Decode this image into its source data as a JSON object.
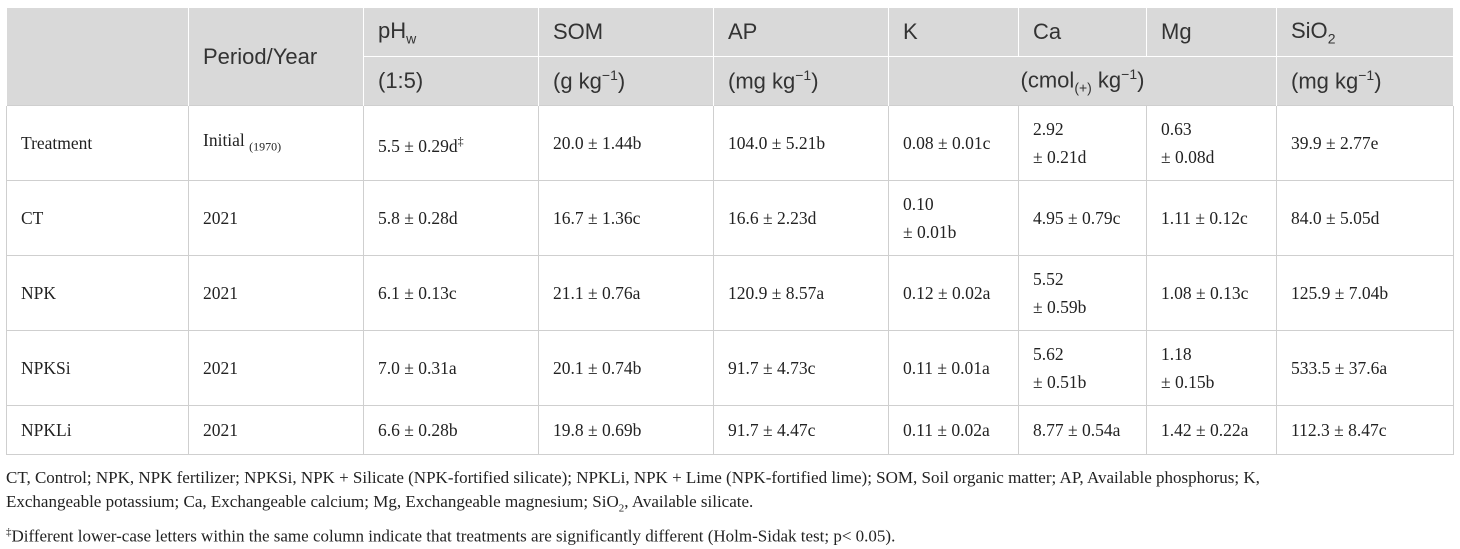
{
  "header": {
    "col0": "",
    "period_year": "Period/Year",
    "ph_base": "pH",
    "ph_sub": "w",
    "ph_unit": "(1:5)",
    "som": "SOM",
    "som_unit_base": "(g kg",
    "som_unit_sup": "−1",
    "som_unit_end": ")",
    "ap": "AP",
    "ap_unit_base": "(mg kg",
    "ap_unit_sup": "−1",
    "ap_unit_end": ")",
    "k": "K",
    "ca": "Ca",
    "mg": "Mg",
    "cations_unit_base": "(cmol",
    "cations_unit_sub": "(+)",
    "cations_unit_mid": " kg",
    "cations_unit_sup": "−1",
    "cations_unit_end": ")",
    "sio2_base": "SiO",
    "sio2_sub": "2",
    "sio2_unit_base": "(mg kg",
    "sio2_unit_sup": "−1",
    "sio2_unit_end": ")"
  },
  "rows": [
    {
      "treatment": "Treatment",
      "period": "Initial",
      "period_sub": "(1970)",
      "ph": "5.5 ± 0.29d",
      "ph_sup": "‡",
      "som": "20.0 ± 1.44b",
      "ap": "104.0 ± 5.21b",
      "k_line1": "0.08 ± 0.01c",
      "k_line2": "",
      "ca_line1": "2.92",
      "ca_line2": "± 0.21d",
      "mg_line1": "0.63",
      "mg_line2": "± 0.08d",
      "sio2": "39.9 ± 2.77e"
    },
    {
      "treatment": "CT",
      "period": "2021",
      "period_sub": "",
      "ph": "5.8 ± 0.28d",
      "ph_sup": "",
      "som": "16.7 ± 1.36c",
      "ap": "16.6 ± 2.23d",
      "k_line1": "0.10",
      "k_line2": "± 0.01b",
      "ca_line1": "4.95 ± 0.79c",
      "ca_line2": "",
      "mg_line1": "1.11 ± 0.12c",
      "mg_line2": "",
      "sio2": "84.0 ± 5.05d"
    },
    {
      "treatment": "NPK",
      "period": "2021",
      "period_sub": "",
      "ph": "6.1 ± 0.13c",
      "ph_sup": "",
      "som": "21.1 ± 0.76a",
      "ap": "120.9 ± 8.57a",
      "k_line1": "0.12 ± 0.02a",
      "k_line2": "",
      "ca_line1": "5.52",
      "ca_line2": "± 0.59b",
      "mg_line1": "1.08 ± 0.13c",
      "mg_line2": "",
      "sio2": "125.9 ± 7.04b"
    },
    {
      "treatment": "NPKSi",
      "period": "2021",
      "period_sub": "",
      "ph": "7.0 ± 0.31a",
      "ph_sup": "",
      "som": "20.1 ± 0.74b",
      "ap": "91.7 ± 4.73c",
      "k_line1": "0.11 ± 0.01a",
      "k_line2": "",
      "ca_line1": "5.62",
      "ca_line2": "± 0.51b",
      "mg_line1": "1.18",
      "mg_line2": "± 0.15b",
      "sio2": "533.5 ± 37.6a"
    },
    {
      "treatment": "NPKLi",
      "period": "2021",
      "period_sub": "",
      "ph": "6.6 ± 0.28b",
      "ph_sup": "",
      "som": "19.8 ± 0.69b",
      "ap": "91.7 ± 4.47c",
      "k_line1": "0.11 ± 0.02a",
      "k_line2": "",
      "ca_line1": "8.77 ± 0.54a",
      "ca_line2": "",
      "mg_line1": "1.42 ± 0.22a",
      "mg_line2": "",
      "sio2": "112.3 ± 8.47c"
    }
  ],
  "footnote": {
    "line1_a": "CT, Control; NPK, NPK fertilizer; NPKSi, NPK + Silicate (NPK-fortified silicate); NPKLi, NPK + Lime (NPK-fortified lime); SOM, Soil organic matter; AP, Available phosphorus; K,",
    "line2_a": "Exchangeable potassium; Ca, Exchangeable calcium; Mg, Exchangeable magnesium; SiO",
    "line2_sub": "2",
    "line2_b": ", Available silicate.",
    "line3_sup": "‡",
    "line3_text": "Different lower-case letters within the same column indicate that treatments are significantly different (Holm-Sidak test; p< 0.05)."
  }
}
